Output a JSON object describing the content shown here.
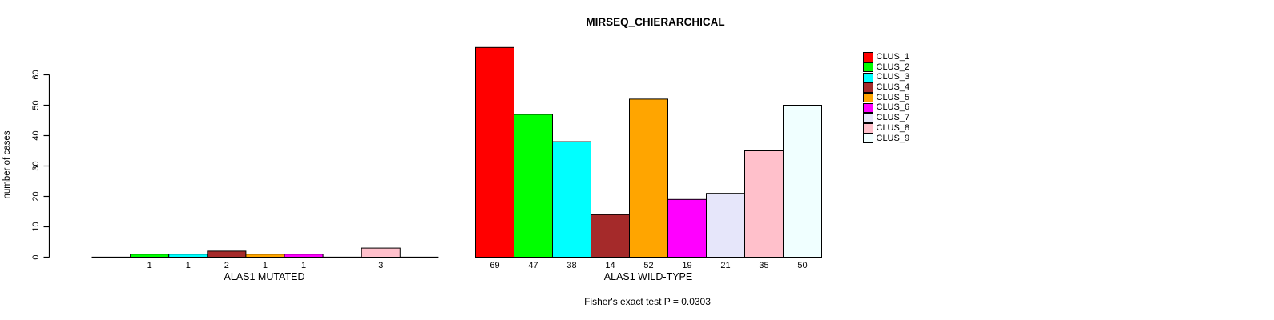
{
  "chart_data": {
    "type": "bar",
    "title": "MIRSEQ_CHIERARCHICAL",
    "ylabel": "number of cases",
    "ylim": [
      0,
      60
    ],
    "yticks": [
      0,
      10,
      20,
      30,
      40,
      50,
      60
    ],
    "grid": false,
    "legend": {
      "position": "top-right",
      "entries": [
        {
          "label": "CLUS_1",
          "color": "#FF0000"
        },
        {
          "label": "CLUS_2",
          "color": "#00FF00"
        },
        {
          "label": "CLUS_3",
          "color": "#00FFFF"
        },
        {
          "label": "CLUS_4",
          "color": "#A52A2A"
        },
        {
          "label": "CLUS_5",
          "color": "#FFA500"
        },
        {
          "label": "CLUS_6",
          "color": "#FF00FF"
        },
        {
          "label": "CLUS_7",
          "color": "#E6E6FA"
        },
        {
          "label": "CLUS_8",
          "color": "#FFC0CB"
        },
        {
          "label": "CLUS_9",
          "color": "#F0FFFF"
        }
      ]
    },
    "groups": [
      {
        "label": "ALAS1 MUTATED",
        "values": [
          0,
          1,
          1,
          2,
          1,
          1,
          0,
          3,
          0
        ]
      },
      {
        "label": "ALAS1 WILD-TYPE",
        "values": [
          69,
          47,
          38,
          14,
          52,
          19,
          21,
          35,
          50
        ]
      }
    ],
    "annotation": "Fisher's exact test P = 0.0303"
  }
}
